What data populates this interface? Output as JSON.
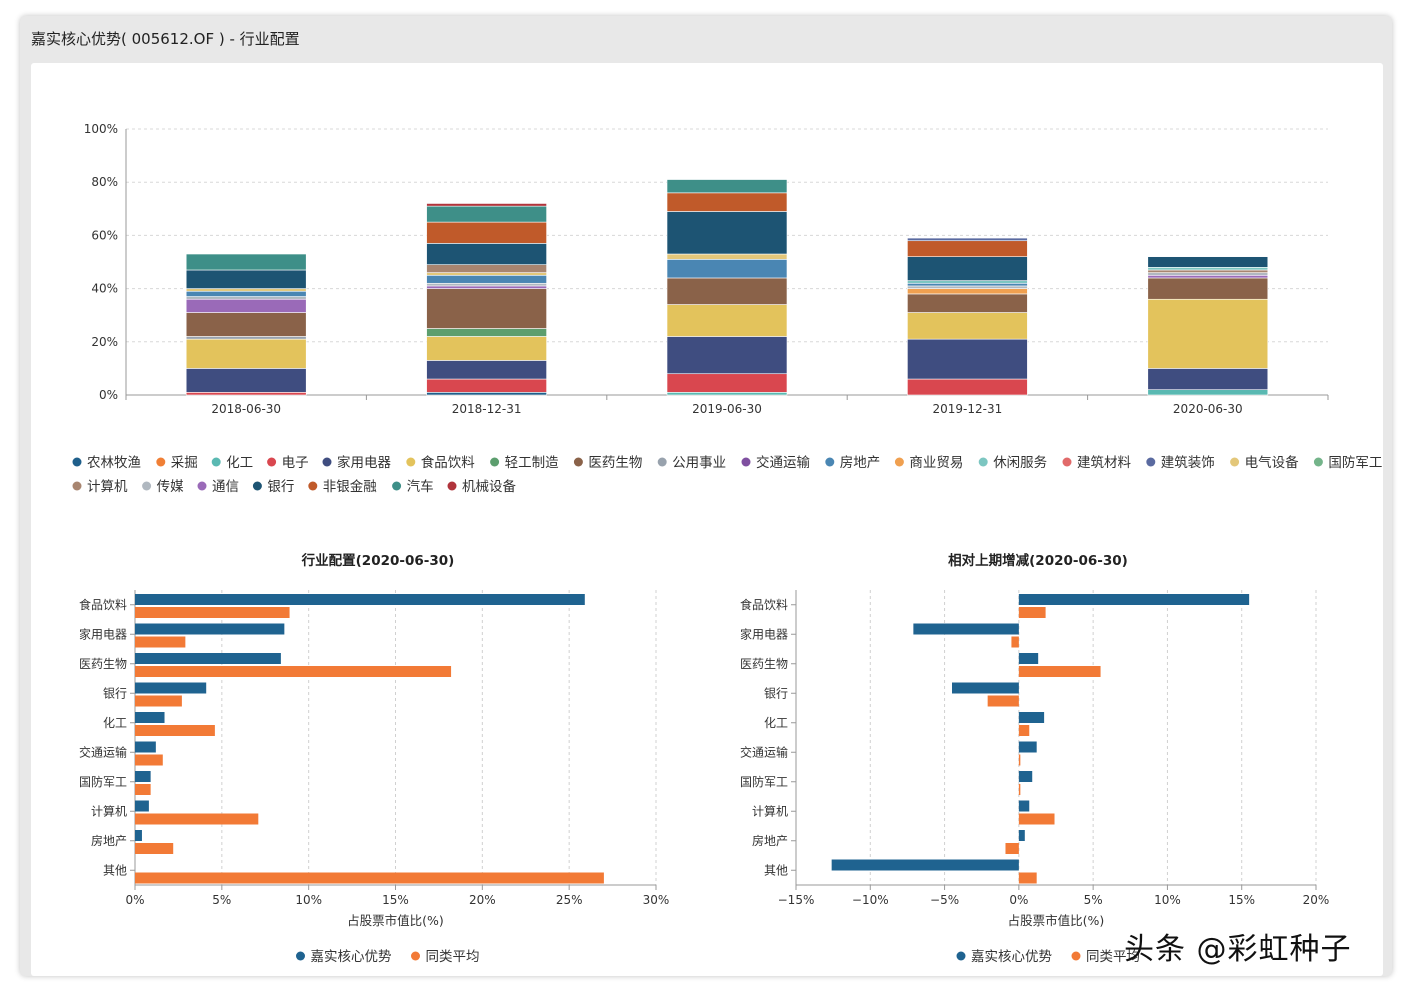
{
  "window": {
    "title": "嘉实核心优势( 005612.OF ) - 行业配置"
  },
  "watermark": "头条 @彩虹种子",
  "legend_main": [
    "农林牧渔",
    "采掘",
    "化工",
    "电子",
    "家用电器",
    "食品饮料",
    "轻工制造",
    "医药生物",
    "公用事业",
    "交通运输",
    "房地产",
    "商业贸易",
    "休闲服务",
    "建筑材料",
    "建筑装饰",
    "电气设备",
    "国防军工",
    "计算机",
    "传媒",
    "通信",
    "银行",
    "非银金融",
    "汽车",
    "机械设备"
  ],
  "colors": {
    "农林牧渔": "#1f5f8b",
    "采掘": "#f07f35",
    "化工": "#5ab9b2",
    "电子": "#d9474f",
    "家用电器": "#3f4d80",
    "食品饮料": "#e3c35c",
    "轻工制造": "#5c9e6e",
    "医药生物": "#8a6249",
    "公用事业": "#98a2ad",
    "交通运输": "#7f4fa0",
    "房地产": "#4a86b3",
    "商业贸易": "#f0a050",
    "休闲服务": "#7cc6c1",
    "建筑材料": "#e16a6a",
    "建筑装饰": "#5a6aa0",
    "电气设备": "#e3c77a",
    "国防军工": "#74b48a",
    "计算机": "#a88570",
    "传媒": "#b0b8c0",
    "通信": "#9a6ab8",
    "银行": "#1d5473",
    "非银金融": "#c05a2a",
    "汽车": "#3e8f88",
    "机械设备": "#b0343b",
    "fund": "#1f6390",
    "avg": "#f27a36"
  },
  "chart_data": [
    {
      "type": "bar",
      "stacked": true,
      "title": "",
      "categories": [
        "2018-06-30",
        "2018-12-31",
        "2019-06-30",
        "2019-12-31",
        "2020-06-30"
      ],
      "ylim": [
        0,
        100
      ],
      "yticks": [
        "0%",
        "20%",
        "40%",
        "60%",
        "80%",
        "100%"
      ],
      "series": [
        {
          "name": "化工",
          "values": [
            0,
            0,
            1,
            0,
            2
          ]
        },
        {
          "name": "农林牧渔",
          "values": [
            0,
            1,
            0,
            0,
            0
          ]
        },
        {
          "name": "电子",
          "values": [
            1,
            5,
            7,
            6,
            0
          ]
        },
        {
          "name": "家用电器",
          "values": [
            9,
            7,
            14,
            15,
            8
          ]
        },
        {
          "name": "国防军工",
          "values": [
            0,
            0,
            0,
            0,
            0
          ]
        },
        {
          "name": "食品饮料",
          "values": [
            11,
            9,
            12,
            10,
            26
          ]
        },
        {
          "name": "公用事业",
          "values": [
            1,
            0,
            0,
            0,
            0
          ]
        },
        {
          "name": "轻工制造",
          "values": [
            0,
            3,
            0,
            0,
            0
          ]
        },
        {
          "name": "医药生物",
          "values": [
            9,
            15,
            10,
            7,
            8
          ]
        },
        {
          "name": "通信",
          "values": [
            5,
            1,
            0,
            0,
            1
          ]
        },
        {
          "name": "商业贸易",
          "values": [
            0,
            0,
            0,
            2,
            0
          ]
        },
        {
          "name": "传媒",
          "values": [
            1,
            1,
            0,
            1,
            1
          ]
        },
        {
          "name": "房地产",
          "values": [
            2,
            3,
            7,
            1,
            0
          ]
        },
        {
          "name": "电气设备",
          "values": [
            1,
            1,
            2,
            0,
            0
          ]
        },
        {
          "name": "计算机",
          "values": [
            0,
            3,
            0,
            0,
            1
          ]
        },
        {
          "name": "休闲服务",
          "values": [
            0,
            0,
            0,
            1,
            1
          ]
        },
        {
          "name": "银行",
          "values": [
            7,
            8,
            16,
            9,
            4
          ]
        },
        {
          "name": "非银金融",
          "values": [
            0,
            8,
            7,
            6,
            0
          ]
        },
        {
          "name": "汽车",
          "values": [
            6,
            6,
            5,
            0,
            0
          ]
        },
        {
          "name": "机械设备",
          "values": [
            0,
            1,
            0,
            0,
            0
          ]
        },
        {
          "name": "建筑装饰",
          "values": [
            0,
            0,
            0,
            1,
            0
          ]
        }
      ]
    },
    {
      "type": "bar",
      "orientation": "horizontal",
      "title": "行业配置(2020-06-30)",
      "xlabel": "占股票市值比(%)",
      "xlim": [
        0,
        30
      ],
      "xticks": [
        "0%",
        "5%",
        "10%",
        "15%",
        "20%",
        "25%",
        "30%"
      ],
      "categories": [
        "食品饮料",
        "家用电器",
        "医药生物",
        "银行",
        "化工",
        "交通运输",
        "国防军工",
        "计算机",
        "房地产",
        "其他"
      ],
      "series": [
        {
          "name": "嘉实核心优势",
          "values": [
            25.9,
            8.6,
            8.4,
            4.1,
            1.7,
            1.2,
            0.9,
            0.8,
            0.4,
            0
          ]
        },
        {
          "name": "同类平均",
          "values": [
            8.9,
            2.9,
            18.2,
            2.7,
            4.6,
            1.6,
            0.9,
            7.1,
            2.2,
            27
          ]
        }
      ]
    },
    {
      "type": "bar",
      "orientation": "horizontal",
      "title": "相对上期增减(2020-06-30)",
      "xlabel": "占股票市值比(%)",
      "xlim": [
        -15,
        20
      ],
      "xticks": [
        "−15%",
        "−10%",
        "−5%",
        "0%",
        "5%",
        "10%",
        "15%",
        "20%"
      ],
      "categories": [
        "食品饮料",
        "家用电器",
        "医药生物",
        "银行",
        "化工",
        "交通运输",
        "国防军工",
        "计算机",
        "房地产",
        "其他"
      ],
      "series": [
        {
          "name": "嘉实核心优势",
          "values": [
            15.5,
            -7.1,
            1.3,
            -4.5,
            1.7,
            1.2,
            0.9,
            0.7,
            0.4,
            -12.6
          ]
        },
        {
          "name": "同类平均",
          "values": [
            1.8,
            -0.5,
            5.5,
            -2.1,
            0.7,
            0.1,
            0.1,
            2.4,
            -0.9,
            1.2
          ]
        }
      ]
    }
  ]
}
